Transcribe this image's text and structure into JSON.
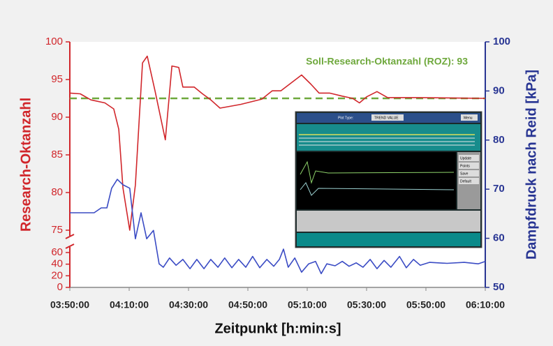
{
  "chart_data": {
    "type": "line",
    "ylabel": "Research-Oktanzahl",
    "y2label": "Dampfdruck nach Reid [kPa]",
    "xlabel": "Zeitpunkt [h:min:s]",
    "xlim": [
      230,
      370
    ],
    "xticks": [
      {
        "value": 230,
        "label": "03:50:00"
      },
      {
        "value": 250,
        "label": "04:10:00"
      },
      {
        "value": 270,
        "label": "04:30:00"
      },
      {
        "value": 290,
        "label": "04:50:00"
      },
      {
        "value": 310,
        "label": "05:10:00"
      },
      {
        "value": 330,
        "label": "05:30:00"
      },
      {
        "value": 350,
        "label": "05:50:00"
      },
      {
        "value": 370,
        "label": "06:10:00"
      }
    ],
    "ylim_segments": [
      [
        0,
        60
      ],
      [
        75,
        100
      ]
    ],
    "yticks": [
      0,
      20,
      40,
      60,
      75,
      80,
      85,
      90,
      95,
      100
    ],
    "y2lim": [
      50,
      100
    ],
    "y2ticks": [
      50,
      60,
      70,
      80,
      90,
      100
    ],
    "ycolor": "#d1262b",
    "y2color": "#283593",
    "reference_line": {
      "value": 92.5,
      "color": "#6ea83c",
      "label": "Soll-Research-Oktanzahl (ROZ): 93"
    },
    "series": [
      {
        "color": "#d1262b",
        "axis": "y",
        "x": [
          230.0,
          233.5,
          237.1,
          241.8,
          244.8,
          246.5,
          247.9,
          250.2,
          252.1,
          254.5,
          256.1,
          258.7,
          262.2,
          264.4,
          266.7,
          268.1,
          271.9,
          274.7,
          277.5,
          280.6,
          287.6,
          294.7,
          298.2,
          301.1,
          304.1,
          308.1,
          311.2,
          314.0,
          317.5,
          321.8,
          325.3,
          327.6,
          330.0,
          333.5,
          337.1,
          347.6,
          370.0
        ],
        "values": [
          93.2,
          93.1,
          92.3,
          91.9,
          91.1,
          88.4,
          80.6,
          75.0,
          81.0,
          97.2,
          98.1,
          93.5,
          87.0,
          96.8,
          96.6,
          94.0,
          94.0,
          93.1,
          92.3,
          91.2,
          91.7,
          92.4,
          93.5,
          93.5,
          94.4,
          95.6,
          94.4,
          93.2,
          93.2,
          92.8,
          92.5,
          91.9,
          92.7,
          93.4,
          92.6,
          92.6,
          92.5
        ]
      },
      {
        "color": "#3a4bc4",
        "axis": "y2",
        "x": [
          230.0,
          238.2,
          240.6,
          242.5,
          244.1,
          246.0,
          247.9,
          250.2,
          252.1,
          254.0,
          255.9,
          258.2,
          260.1,
          261.5,
          263.6,
          265.8,
          268.1,
          270.5,
          272.8,
          275.2,
          277.5,
          279.9,
          282.2,
          284.6,
          286.9,
          289.3,
          291.6,
          294.0,
          296.4,
          298.7,
          300.6,
          302.0,
          303.6,
          305.8,
          308.1,
          310.5,
          312.8,
          314.7,
          316.6,
          319.4,
          321.8,
          324.1,
          326.5,
          328.8,
          331.2,
          333.5,
          335.9,
          338.2,
          341.1,
          343.4,
          345.8,
          348.1,
          351.2,
          357.1,
          362.9,
          367.6,
          370.0
        ],
        "values": [
          65.2,
          65.2,
          66.2,
          66.2,
          70.2,
          72.0,
          70.9,
          70.2,
          59.9,
          65.2,
          59.9,
          61.6,
          54.8,
          54.1,
          56.0,
          54.5,
          55.7,
          53.8,
          55.7,
          53.8,
          55.7,
          54.1,
          56.0,
          54.0,
          55.7,
          54.1,
          56.3,
          54.0,
          55.7,
          54.3,
          55.7,
          57.8,
          54.1,
          56.0,
          53.1,
          54.8,
          55.3,
          52.8,
          54.8,
          54.4,
          55.3,
          54.3,
          55.0,
          54.1,
          55.7,
          53.8,
          55.5,
          54.1,
          56.3,
          54.0,
          55.7,
          54.5,
          55.1,
          54.9,
          55.1,
          54.8,
          55.3
        ]
      }
    ]
  },
  "inset": {
    "plot_type_label": "Plot Type:",
    "plot_type": "TREND VALUE",
    "menu": "Menu",
    "buttons": [
      "Update",
      "Points",
      "Save",
      "Default"
    ]
  }
}
